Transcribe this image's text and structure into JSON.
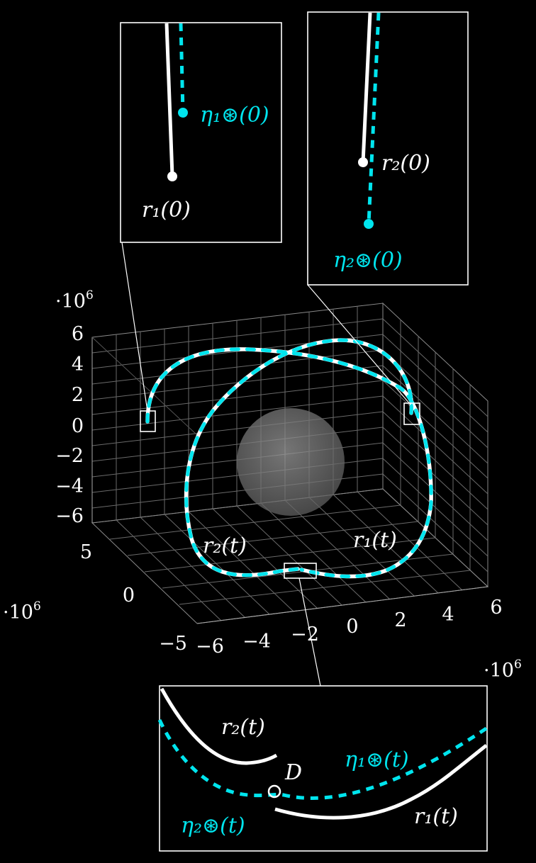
{
  "colors": {
    "background": "#000000",
    "trajectory": "#ffffff",
    "reference": "#00e5ee",
    "sphere": "#8a8a8a"
  },
  "axes": {
    "z_exponent": "·10",
    "z_exponent_power": "6",
    "z_ticks": [
      "6",
      "4",
      "2",
      "0",
      "−2",
      "−4",
      "−6"
    ],
    "y_exponent": "·10",
    "y_exponent_power": "6",
    "y_ticks": [
      "5",
      "0",
      "−5"
    ],
    "x_exponent": "·10",
    "x_exponent_power": "6",
    "x_ticks": [
      "−6",
      "−4",
      "−2",
      "0",
      "2",
      "4",
      "6"
    ]
  },
  "labels": {
    "r1t": "r₁(t)",
    "r2t": "r₂(t)",
    "r1_0": "r₁(0)",
    "r2_0": "r₂(0)",
    "eta1_0": "η₁⊛(0)",
    "eta2_0": "η₂⊛(0)",
    "eta1t": "η₁⊛(t)",
    "eta2t": "η₂⊛(t)",
    "D": "D"
  }
}
